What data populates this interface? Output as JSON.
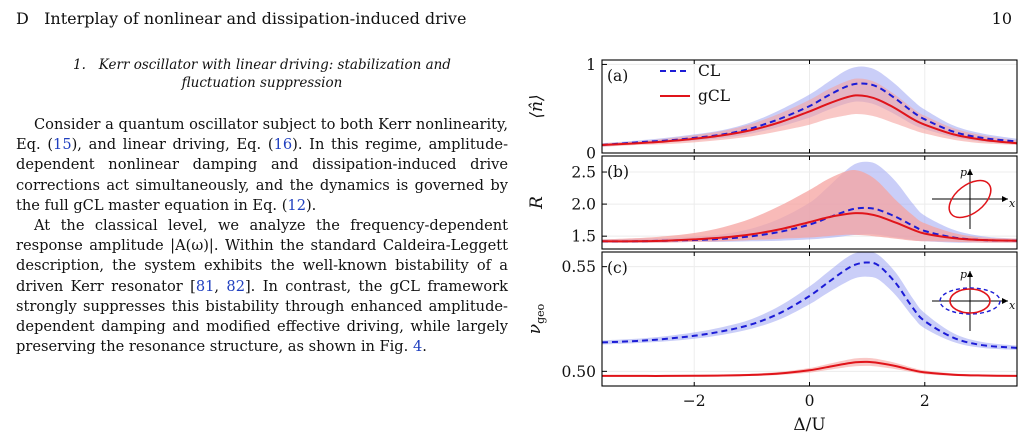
{
  "header": {
    "section": "D",
    "title": "Interplay of nonlinear and dissipation-induced drive",
    "page_number": "10"
  },
  "subsection": {
    "number": "1.",
    "title_line1": "Kerr oscillator with linear driving: stabilization and",
    "title_line2": "fluctuation suppression"
  },
  "paragraph1": {
    "t1": "Consider a quantum oscillator subject to both Kerr nonlinearity, Eq. (",
    "ref1": "15",
    "t2": "), and linear driving, Eq. (",
    "ref2": "16",
    "t3": "). In this regime, amplitude-dependent nonlinear damping and dissipation-induced drive corrections act simultaneously, and the dynamics is governed by the full gCL master equation in Eq. (",
    "ref3": "12",
    "t4": ")."
  },
  "paragraph2": {
    "t1": "At the classical level, we analyze the frequency-dependent response amplitude |A(ω)|. Within the standard Caldeira-Leggett description, the system exhibits the well-known bistability of a driven Kerr resonator [",
    "ref1": "81",
    "t2": ", ",
    "ref2": "82",
    "t3": "]. In contrast, the gCL framework strongly suppresses this bistability through enhanced amplitude-dependent damping and modified effective driving, while largely preserving the resonance structure, as shown in Fig. ",
    "ref3": "4",
    "t4": "."
  },
  "figure": {
    "colors": {
      "CL": "#1c1cd6",
      "gCL": "#e0141a",
      "CL_band": "#9ea6f2",
      "gCL_band": "#f5a3a0",
      "overlap": "#a66fa5"
    },
    "legend": [
      {
        "label": "CL",
        "style": "dashed",
        "color": "#1c1cd6"
      },
      {
        "label": "gCL",
        "style": "solid",
        "color": "#e0141a"
      }
    ],
    "xlabel": "Δ/U",
    "panels": [
      {
        "tag": "(a)",
        "ylabel": "⟨n̂⟩"
      },
      {
        "tag": "(b)",
        "ylabel": "R"
      },
      {
        "tag": "(c)",
        "ylabel": "ν_geo"
      }
    ],
    "inset": {
      "x_label": "x",
      "p_label": "p"
    }
  },
  "chart_data": [
    {
      "type": "line",
      "panel": "(a)",
      "ylabel": "⟨n̂⟩",
      "xlim": [
        -3.6,
        3.6
      ],
      "ylim": [
        0,
        1.05
      ],
      "yticks": [
        0,
        1
      ],
      "x": [
        -3.6,
        -3.0,
        -2.5,
        -2.0,
        -1.5,
        -1.0,
        -0.5,
        0.0,
        0.3,
        0.6,
        0.8,
        1.0,
        1.2,
        1.5,
        1.8,
        2.0,
        2.5,
        3.0,
        3.6
      ],
      "series": [
        {
          "name": "CL",
          "values": [
            0.09,
            0.12,
            0.14,
            0.17,
            0.21,
            0.28,
            0.39,
            0.53,
            0.64,
            0.74,
            0.78,
            0.78,
            0.74,
            0.61,
            0.46,
            0.38,
            0.24,
            0.17,
            0.13
          ],
          "band_low": [
            0.07,
            0.1,
            0.12,
            0.14,
            0.17,
            0.22,
            0.3,
            0.4,
            0.48,
            0.55,
            0.58,
            0.57,
            0.53,
            0.43,
            0.32,
            0.27,
            0.18,
            0.13,
            0.1
          ],
          "band_high": [
            0.11,
            0.14,
            0.17,
            0.21,
            0.26,
            0.35,
            0.49,
            0.66,
            0.79,
            0.92,
            0.97,
            0.97,
            0.92,
            0.77,
            0.59,
            0.49,
            0.31,
            0.22,
            0.16
          ]
        },
        {
          "name": "gCL",
          "values": [
            0.09,
            0.11,
            0.13,
            0.16,
            0.2,
            0.26,
            0.35,
            0.47,
            0.55,
            0.62,
            0.65,
            0.64,
            0.6,
            0.5,
            0.38,
            0.32,
            0.21,
            0.15,
            0.11
          ],
          "band_low": [
            0.07,
            0.09,
            0.1,
            0.12,
            0.15,
            0.19,
            0.25,
            0.32,
            0.38,
            0.42,
            0.44,
            0.43,
            0.4,
            0.33,
            0.26,
            0.22,
            0.15,
            0.11,
            0.09
          ],
          "band_high": [
            0.11,
            0.13,
            0.16,
            0.2,
            0.25,
            0.33,
            0.45,
            0.6,
            0.71,
            0.8,
            0.84,
            0.83,
            0.78,
            0.65,
            0.5,
            0.42,
            0.28,
            0.2,
            0.14
          ]
        }
      ]
    },
    {
      "type": "line",
      "panel": "(b)",
      "ylabel": "R",
      "xlim": [
        -3.6,
        3.6
      ],
      "ylim": [
        1.3,
        2.75
      ],
      "yticks": [
        1.5,
        2.0,
        2.5
      ],
      "x": [
        -3.6,
        -3.0,
        -2.5,
        -2.0,
        -1.5,
        -1.0,
        -0.5,
        0.0,
        0.3,
        0.6,
        0.8,
        1.0,
        1.2,
        1.5,
        1.8,
        2.0,
        2.5,
        3.0,
        3.6
      ],
      "series": [
        {
          "name": "CL",
          "values": [
            1.42,
            1.42,
            1.43,
            1.44,
            1.46,
            1.5,
            1.57,
            1.68,
            1.78,
            1.88,
            1.93,
            1.94,
            1.91,
            1.8,
            1.66,
            1.58,
            1.48,
            1.44,
            1.43
          ],
          "band_low": [
            1.4,
            1.4,
            1.4,
            1.41,
            1.41,
            1.42,
            1.43,
            1.45,
            1.47,
            1.5,
            1.52,
            1.53,
            1.52,
            1.48,
            1.44,
            1.42,
            1.4,
            1.4,
            1.4
          ],
          "band_high": [
            1.45,
            1.46,
            1.47,
            1.49,
            1.53,
            1.62,
            1.78,
            2.02,
            2.25,
            2.5,
            2.63,
            2.66,
            2.6,
            2.35,
            2.0,
            1.82,
            1.6,
            1.5,
            1.46
          ]
        },
        {
          "name": "gCL",
          "values": [
            1.42,
            1.42,
            1.43,
            1.45,
            1.48,
            1.53,
            1.61,
            1.72,
            1.79,
            1.84,
            1.86,
            1.85,
            1.81,
            1.71,
            1.6,
            1.54,
            1.47,
            1.44,
            1.43
          ],
          "band_low": [
            1.4,
            1.4,
            1.4,
            1.41,
            1.42,
            1.44,
            1.46,
            1.48,
            1.5,
            1.52,
            1.52,
            1.51,
            1.49,
            1.46,
            1.43,
            1.42,
            1.41,
            1.4,
            1.4
          ],
          "band_high": [
            1.45,
            1.47,
            1.5,
            1.55,
            1.64,
            1.78,
            1.98,
            2.22,
            2.38,
            2.5,
            2.53,
            2.47,
            2.34,
            2.06,
            1.82,
            1.7,
            1.55,
            1.48,
            1.46
          ]
        }
      ]
    },
    {
      "type": "line",
      "panel": "(c)",
      "ylabel": "ν_geo",
      "xlabel": "Δ/U",
      "xlim": [
        -3.6,
        3.6
      ],
      "ylim": [
        0.493,
        0.557
      ],
      "yticks": [
        0.5,
        0.55
      ],
      "xticks": [
        -2,
        0,
        2
      ],
      "x": [
        -3.6,
        -3.0,
        -2.5,
        -2.0,
        -1.5,
        -1.0,
        -0.5,
        0.0,
        0.3,
        0.6,
        0.8,
        1.0,
        1.2,
        1.5,
        1.8,
        2.0,
        2.5,
        3.0,
        3.6
      ],
      "series": [
        {
          "name": "CL",
          "values": [
            0.5138,
            0.5145,
            0.5155,
            0.517,
            0.5192,
            0.5225,
            0.528,
            0.536,
            0.542,
            0.548,
            0.551,
            0.552,
            0.5505,
            0.542,
            0.53,
            0.524,
            0.516,
            0.5125,
            0.5112
          ],
          "band_low": [
            0.5128,
            0.5135,
            0.5143,
            0.5156,
            0.5175,
            0.5204,
            0.525,
            0.532,
            0.5372,
            0.542,
            0.5446,
            0.5452,
            0.5438,
            0.5362,
            0.5258,
            0.5205,
            0.514,
            0.5112,
            0.5102
          ],
          "band_high": [
            0.5148,
            0.5156,
            0.5168,
            0.5186,
            0.5212,
            0.525,
            0.5315,
            0.5405,
            0.547,
            0.5535,
            0.5565,
            0.557,
            0.5555,
            0.547,
            0.5345,
            0.5278,
            0.5182,
            0.514,
            0.5123
          ]
        },
        {
          "name": "gCL",
          "values": [
            0.4978,
            0.4978,
            0.4978,
            0.4979,
            0.498,
            0.4983,
            0.499,
            0.5005,
            0.502,
            0.5035,
            0.5043,
            0.5045,
            0.504,
            0.5025,
            0.5005,
            0.4995,
            0.4984,
            0.498,
            0.4978
          ],
          "band_low": [
            0.4974,
            0.4974,
            0.4974,
            0.4975,
            0.4976,
            0.4978,
            0.4983,
            0.4994,
            0.5006,
            0.5018,
            0.5024,
            0.5026,
            0.5022,
            0.501,
            0.4995,
            0.4987,
            0.4978,
            0.4975,
            0.4974
          ],
          "band_high": [
            0.4982,
            0.4982,
            0.4982,
            0.4983,
            0.4985,
            0.4989,
            0.4998,
            0.5016,
            0.5034,
            0.5052,
            0.5062,
            0.5064,
            0.5058,
            0.504,
            0.5016,
            0.5004,
            0.499,
            0.4984,
            0.4982
          ]
        }
      ]
    }
  ]
}
